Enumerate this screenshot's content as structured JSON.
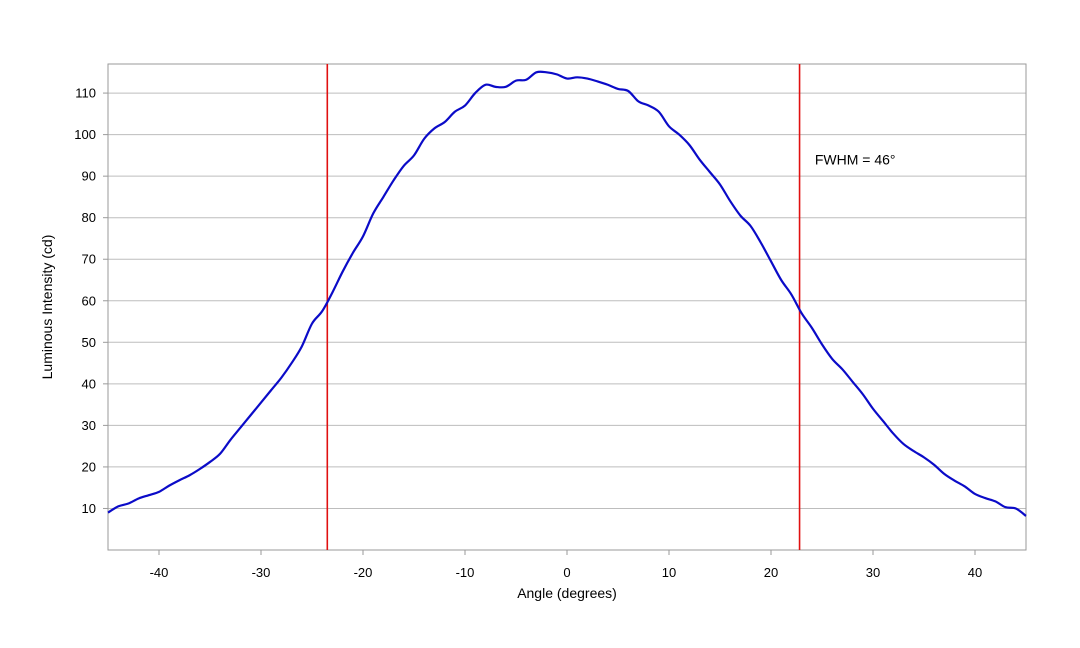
{
  "chart_data": {
    "type": "line",
    "title": "",
    "xlabel": "Angle (degrees)",
    "ylabel": "Luminous Intensity (cd)",
    "xlim": [
      -45,
      45
    ],
    "ylim": [
      0,
      117
    ],
    "x_ticks": [
      -40,
      -30,
      -20,
      -10,
      0,
      10,
      20,
      30,
      40
    ],
    "y_ticks": [
      10,
      20,
      30,
      40,
      50,
      60,
      70,
      80,
      90,
      100,
      110
    ],
    "grid": "horizontal",
    "legend": "none",
    "colors": {
      "curve": "#0b0bc8",
      "markers": "#e01010",
      "grid": "#bdbdbd",
      "frame": "#9a9a9a"
    },
    "series": [
      {
        "x": [
          -45,
          -44,
          -43,
          -42,
          -41,
          -40,
          -39,
          -38,
          -37,
          -36,
          -35,
          -34,
          -33,
          -32,
          -31,
          -30,
          -29,
          -28,
          -27,
          -26,
          -25,
          -24,
          -23,
          -22,
          -21,
          -20,
          -19,
          -18,
          -17,
          -16,
          -15,
          -14,
          -13,
          -12,
          -11,
          -10,
          -9,
          -8,
          -7,
          -6,
          -5,
          -4,
          -3,
          -2,
          -1,
          0,
          1,
          2,
          3,
          4,
          5,
          6,
          7,
          8,
          9,
          10,
          11,
          12,
          13,
          14,
          15,
          16,
          17,
          18,
          19,
          20,
          21,
          22,
          23,
          24,
          25,
          26,
          27,
          28,
          29,
          30,
          31,
          32,
          33,
          34,
          35,
          36,
          37,
          38,
          39,
          40,
          41,
          42,
          43,
          44,
          45
        ],
        "values": [
          9,
          10.5,
          11.2,
          12.4,
          13.2,
          14,
          15.5,
          16.8,
          18,
          19.5,
          21.2,
          23.2,
          26.5,
          29.5,
          32.5,
          35.5,
          38.5,
          41.5,
          45,
          49,
          54.5,
          57.5,
          62,
          67,
          71.5,
          75.5,
          81,
          85,
          89,
          92.5,
          95,
          99,
          101.5,
          103,
          105.5,
          107,
          110,
          112,
          111.5,
          111.5,
          113,
          113.2,
          115,
          115,
          114.5,
          113.5,
          113.8,
          113.5,
          112.8,
          112,
          111,
          110.5,
          108,
          107,
          105.5,
          102,
          100,
          97.5,
          94,
          91,
          88,
          84,
          80.5,
          78,
          74,
          69.5,
          65,
          61.5,
          57,
          53.5,
          49.5,
          46,
          43.5,
          40.5,
          37.5,
          34,
          31,
          28,
          25.5,
          23.8,
          22.3,
          20.5,
          18.3,
          16.7,
          15.3,
          13.5,
          12.5,
          11.7,
          10.3,
          10,
          8.2
        ]
      }
    ],
    "markers": [
      {
        "x": -23.5
      },
      {
        "x": 22.8
      }
    ],
    "annotations": [
      {
        "text": "FWHM = 46°",
        "x": 24.3,
        "y": 94
      }
    ]
  }
}
